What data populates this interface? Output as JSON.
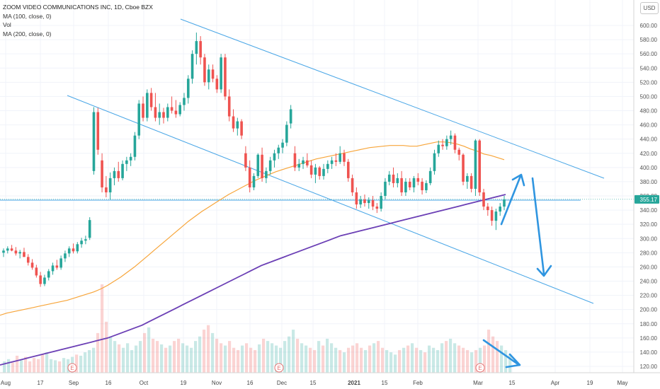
{
  "header": {
    "symbol_line": "ZOOM VIDEO COMMUNICATIONS INC, 1D, Cboe BZX",
    "indicators": [
      "MA (100, close, 0)",
      "Vol",
      "MA (200, close, 0)"
    ],
    "currency": "USD"
  },
  "colors": {
    "up": "#26a69a",
    "down": "#ef5350",
    "ma100": "#f7a53a",
    "ma200": "#6b3fb5",
    "trendline": "#49a6e6",
    "annotation_arrow": "#2f95e0",
    "price_label_bg": "#26a69a",
    "grid": "#f0f3fa"
  },
  "chart_data": {
    "type": "candlestick",
    "title": "ZOOM VIDEO COMMUNICATIONS INC, 1D, Cboe BZX",
    "y_axis": {
      "ticks": [
        "120.00",
        "140.00",
        "160.00",
        "180.00",
        "200.00",
        "220.00",
        "240.00",
        "260.00",
        "280.00",
        "300.00",
        "320.00",
        "340.00",
        "360.00",
        "380.00",
        "400.00",
        "420.00",
        "440.00",
        "460.00",
        "480.00",
        "500.00",
        "520.00",
        "540.00",
        "560.00",
        "580.00",
        "600.00"
      ],
      "range": [
        108,
        620
      ],
      "current_price_label": "355.17",
      "current_price": 355.17
    },
    "x_axis": {
      "ticks": [
        "Aug",
        "17",
        "Sep",
        "16",
        "Oct",
        "19",
        "Nov",
        "16",
        "Dec",
        "15",
        "2021",
        "15",
        "Feb",
        "Mar",
        "15",
        "Apr",
        "19",
        "May"
      ],
      "bold_ticks": [
        "2021"
      ]
    },
    "earnings_markers": [
      "E",
      "E",
      "E",
      "E"
    ],
    "grid": true,
    "candles": [
      {
        "o": 280,
        "h": 286,
        "l": 274,
        "c": 283
      },
      {
        "o": 283,
        "h": 289,
        "l": 279,
        "c": 286
      },
      {
        "o": 286,
        "h": 291,
        "l": 282,
        "c": 283
      },
      {
        "o": 283,
        "h": 288,
        "l": 276,
        "c": 279
      },
      {
        "o": 279,
        "h": 284,
        "l": 272,
        "c": 281
      },
      {
        "o": 281,
        "h": 287,
        "l": 276,
        "c": 274
      },
      {
        "o": 274,
        "h": 278,
        "l": 262,
        "c": 266
      },
      {
        "o": 266,
        "h": 271,
        "l": 256,
        "c": 259
      },
      {
        "o": 259,
        "h": 263,
        "l": 245,
        "c": 248
      },
      {
        "o": 248,
        "h": 253,
        "l": 232,
        "c": 236
      },
      {
        "o": 236,
        "h": 249,
        "l": 233,
        "c": 245
      },
      {
        "o": 245,
        "h": 257,
        "l": 241,
        "c": 254
      },
      {
        "o": 254,
        "h": 266,
        "l": 249,
        "c": 262
      },
      {
        "o": 262,
        "h": 270,
        "l": 256,
        "c": 259
      },
      {
        "o": 259,
        "h": 276,
        "l": 256,
        "c": 272
      },
      {
        "o": 272,
        "h": 283,
        "l": 267,
        "c": 279
      },
      {
        "o": 279,
        "h": 289,
        "l": 274,
        "c": 286
      },
      {
        "o": 286,
        "h": 293,
        "l": 279,
        "c": 282
      },
      {
        "o": 282,
        "h": 295,
        "l": 279,
        "c": 292
      },
      {
        "o": 292,
        "h": 301,
        "l": 287,
        "c": 297
      },
      {
        "o": 297,
        "h": 304,
        "l": 292,
        "c": 299
      },
      {
        "o": 301,
        "h": 330,
        "l": 298,
        "c": 326
      },
      {
        "o": 395,
        "h": 485,
        "l": 390,
        "c": 478
      },
      {
        "o": 478,
        "h": 484,
        "l": 418,
        "c": 425
      },
      {
        "o": 410,
        "h": 420,
        "l": 365,
        "c": 372
      },
      {
        "o": 372,
        "h": 388,
        "l": 358,
        "c": 365
      },
      {
        "o": 365,
        "h": 393,
        "l": 355,
        "c": 385
      },
      {
        "o": 385,
        "h": 400,
        "l": 375,
        "c": 395
      },
      {
        "o": 395,
        "h": 408,
        "l": 380,
        "c": 385
      },
      {
        "o": 385,
        "h": 410,
        "l": 382,
        "c": 405
      },
      {
        "o": 405,
        "h": 415,
        "l": 395,
        "c": 410
      },
      {
        "o": 410,
        "h": 420,
        "l": 402,
        "c": 415
      },
      {
        "o": 415,
        "h": 450,
        "l": 410,
        "c": 445
      },
      {
        "o": 445,
        "h": 495,
        "l": 440,
        "c": 490
      },
      {
        "o": 490,
        "h": 500,
        "l": 465,
        "c": 470
      },
      {
        "o": 470,
        "h": 510,
        "l": 465,
        "c": 505
      },
      {
        "o": 505,
        "h": 512,
        "l": 480,
        "c": 485
      },
      {
        "o": 485,
        "h": 505,
        "l": 465,
        "c": 470
      },
      {
        "o": 470,
        "h": 490,
        "l": 460,
        "c": 478
      },
      {
        "o": 478,
        "h": 484,
        "l": 462,
        "c": 470
      },
      {
        "o": 470,
        "h": 490,
        "l": 465,
        "c": 485
      },
      {
        "o": 485,
        "h": 500,
        "l": 476,
        "c": 480
      },
      {
        "o": 480,
        "h": 495,
        "l": 470,
        "c": 475
      },
      {
        "o": 475,
        "h": 492,
        "l": 472,
        "c": 488
      },
      {
        "o": 488,
        "h": 505,
        "l": 480,
        "c": 498
      },
      {
        "o": 498,
        "h": 530,
        "l": 490,
        "c": 525
      },
      {
        "o": 525,
        "h": 565,
        "l": 518,
        "c": 560
      },
      {
        "o": 560,
        "h": 590,
        "l": 545,
        "c": 578
      },
      {
        "o": 578,
        "h": 585,
        "l": 545,
        "c": 555
      },
      {
        "o": 555,
        "h": 560,
        "l": 515,
        "c": 520
      },
      {
        "o": 520,
        "h": 545,
        "l": 510,
        "c": 538
      },
      {
        "o": 538,
        "h": 545,
        "l": 520,
        "c": 525
      },
      {
        "o": 525,
        "h": 530,
        "l": 505,
        "c": 510
      },
      {
        "o": 510,
        "h": 560,
        "l": 505,
        "c": 555
      },
      {
        "o": 555,
        "h": 560,
        "l": 495,
        "c": 500
      },
      {
        "o": 500,
        "h": 510,
        "l": 465,
        "c": 472
      },
      {
        "o": 472,
        "h": 482,
        "l": 450,
        "c": 455
      },
      {
        "o": 455,
        "h": 470,
        "l": 445,
        "c": 465
      },
      {
        "o": 465,
        "h": 468,
        "l": 440,
        "c": 445
      },
      {
        "o": 420,
        "h": 430,
        "l": 395,
        "c": 400
      },
      {
        "o": 400,
        "h": 410,
        "l": 365,
        "c": 372
      },
      {
        "o": 372,
        "h": 392,
        "l": 368,
        "c": 388
      },
      {
        "o": 388,
        "h": 420,
        "l": 385,
        "c": 418
      },
      {
        "o": 418,
        "h": 428,
        "l": 380,
        "c": 385
      },
      {
        "o": 385,
        "h": 400,
        "l": 378,
        "c": 395
      },
      {
        "o": 395,
        "h": 415,
        "l": 390,
        "c": 410
      },
      {
        "o": 410,
        "h": 425,
        "l": 400,
        "c": 420
      },
      {
        "o": 420,
        "h": 432,
        "l": 412,
        "c": 428
      },
      {
        "o": 428,
        "h": 440,
        "l": 420,
        "c": 435
      },
      {
        "o": 435,
        "h": 465,
        "l": 430,
        "c": 460
      },
      {
        "o": 462,
        "h": 488,
        "l": 455,
        "c": 482
      },
      {
        "o": 420,
        "h": 430,
        "l": 395,
        "c": 400
      },
      {
        "o": 400,
        "h": 412,
        "l": 395,
        "c": 405
      },
      {
        "o": 405,
        "h": 415,
        "l": 398,
        "c": 410
      },
      {
        "o": 410,
        "h": 420,
        "l": 400,
        "c": 403
      },
      {
        "o": 403,
        "h": 410,
        "l": 385,
        "c": 390
      },
      {
        "o": 390,
        "h": 405,
        "l": 378,
        "c": 400
      },
      {
        "o": 400,
        "h": 402,
        "l": 383,
        "c": 388
      },
      {
        "o": 388,
        "h": 405,
        "l": 383,
        "c": 398
      },
      {
        "o": 398,
        "h": 410,
        "l": 392,
        "c": 405
      },
      {
        "o": 405,
        "h": 415,
        "l": 398,
        "c": 410
      },
      {
        "o": 410,
        "h": 420,
        "l": 402,
        "c": 408
      },
      {
        "o": 408,
        "h": 430,
        "l": 405,
        "c": 420
      },
      {
        "o": 420,
        "h": 425,
        "l": 402,
        "c": 408
      },
      {
        "o": 408,
        "h": 412,
        "l": 380,
        "c": 385
      },
      {
        "o": 385,
        "h": 390,
        "l": 360,
        "c": 365
      },
      {
        "o": 365,
        "h": 372,
        "l": 342,
        "c": 348
      },
      {
        "o": 348,
        "h": 360,
        "l": 343,
        "c": 355
      },
      {
        "o": 355,
        "h": 362,
        "l": 345,
        "c": 350
      },
      {
        "o": 350,
        "h": 358,
        "l": 342,
        "c": 354
      },
      {
        "o": 354,
        "h": 360,
        "l": 340,
        "c": 345
      },
      {
        "o": 345,
        "h": 350,
        "l": 336,
        "c": 342
      },
      {
        "o": 342,
        "h": 365,
        "l": 338,
        "c": 360
      },
      {
        "o": 360,
        "h": 385,
        "l": 355,
        "c": 380
      },
      {
        "o": 380,
        "h": 395,
        "l": 375,
        "c": 390
      },
      {
        "o": 390,
        "h": 400,
        "l": 372,
        "c": 378
      },
      {
        "o": 378,
        "h": 392,
        "l": 372,
        "c": 385
      },
      {
        "o": 385,
        "h": 395,
        "l": 360,
        "c": 365
      },
      {
        "o": 365,
        "h": 385,
        "l": 360,
        "c": 380
      },
      {
        "o": 380,
        "h": 385,
        "l": 368,
        "c": 372
      },
      {
        "o": 372,
        "h": 388,
        "l": 365,
        "c": 385
      },
      {
        "o": 385,
        "h": 392,
        "l": 375,
        "c": 380
      },
      {
        "o": 380,
        "h": 385,
        "l": 362,
        "c": 368
      },
      {
        "o": 368,
        "h": 382,
        "l": 364,
        "c": 378
      },
      {
        "o": 378,
        "h": 400,
        "l": 375,
        "c": 395
      },
      {
        "o": 395,
        "h": 425,
        "l": 390,
        "c": 420
      },
      {
        "o": 420,
        "h": 438,
        "l": 415,
        "c": 432
      },
      {
        "o": 432,
        "h": 440,
        "l": 425,
        "c": 430
      },
      {
        "o": 430,
        "h": 445,
        "l": 425,
        "c": 440
      },
      {
        "o": 440,
        "h": 452,
        "l": 432,
        "c": 445
      },
      {
        "o": 445,
        "h": 448,
        "l": 420,
        "c": 425
      },
      {
        "o": 425,
        "h": 428,
        "l": 410,
        "c": 418
      },
      {
        "o": 418,
        "h": 420,
        "l": 375,
        "c": 380
      },
      {
        "o": 380,
        "h": 392,
        "l": 370,
        "c": 388
      },
      {
        "o": 388,
        "h": 392,
        "l": 365,
        "c": 370
      },
      {
        "o": 370,
        "h": 440,
        "l": 360,
        "c": 438
      },
      {
        "o": 438,
        "h": 440,
        "l": 360,
        "c": 365
      },
      {
        "o": 365,
        "h": 370,
        "l": 340,
        "c": 345
      },
      {
        "o": 345,
        "h": 350,
        "l": 332,
        "c": 340
      },
      {
        "o": 340,
        "h": 345,
        "l": 318,
        "c": 325
      },
      {
        "o": 325,
        "h": 342,
        "l": 312,
        "c": 338
      },
      {
        "o": 338,
        "h": 350,
        "l": 332,
        "c": 345
      },
      {
        "o": 345,
        "h": 360,
        "l": 340,
        "c": 355
      }
    ],
    "series": [
      {
        "name": "MA (100, close, 0)",
        "values": [
          192,
          195,
          197,
          199,
          201,
          203,
          205,
          207,
          209,
          211,
          213,
          216,
          219,
          222,
          225,
          229,
          234,
          240,
          246,
          253,
          260,
          268,
          276,
          284,
          292,
          300,
          308,
          316,
          324,
          331,
          338,
          344,
          350,
          356,
          362,
          367,
          372,
          377,
          382,
          386,
          390,
          394,
          397,
          400,
          403,
          406,
          409,
          412,
          414,
          416,
          418,
          420,
          422,
          424,
          426,
          428,
          429,
          430,
          431,
          431,
          431,
          430,
          430,
          432,
          434,
          436,
          436,
          435,
          433,
          430,
          426,
          423,
          419,
          417,
          414,
          411
        ]
      },
      {
        "name": "MA (200, close, 0)",
        "values": [
          122,
          124,
          126,
          128,
          130,
          132,
          134,
          136,
          138,
          140,
          142,
          144,
          146,
          148,
          150,
          152,
          154,
          156,
          158,
          160,
          163,
          166,
          169,
          172,
          175,
          178,
          182,
          186,
          190,
          194,
          198,
          202,
          206,
          210,
          214,
          218,
          222,
          226,
          230,
          234,
          238,
          242,
          246,
          250,
          254,
          258,
          262,
          265,
          268,
          271,
          274,
          277,
          280,
          283,
          286,
          289,
          292,
          295,
          298,
          301,
          304,
          306,
          308,
          310,
          312,
          314,
          316,
          318,
          320,
          322,
          324,
          326,
          328,
          330,
          332,
          334,
          336,
          338,
          340,
          342,
          344,
          346,
          348,
          350,
          352,
          354,
          356,
          358,
          360,
          362
        ]
      }
    ],
    "volume": [
      10,
      12,
      9,
      15,
      11,
      14,
      10,
      13,
      12,
      16,
      18,
      12,
      11,
      10,
      13,
      12,
      14,
      16,
      15,
      18,
      20,
      22,
      35,
      78,
      45,
      32,
      28,
      25,
      22,
      26,
      20,
      24,
      28,
      35,
      40,
      30,
      28,
      25,
      22,
      24,
      28,
      30,
      26,
      24,
      22,
      28,
      32,
      38,
      42,
      35,
      30,
      26,
      24,
      28,
      22,
      20,
      24,
      26,
      22,
      20,
      25,
      30,
      28,
      26,
      24,
      22,
      28,
      32,
      38,
      30,
      26,
      24,
      22,
      20,
      28,
      24,
      30,
      26,
      22,
      20,
      18,
      22,
      24,
      26,
      22,
      20,
      24,
      26,
      28,
      22,
      20,
      18,
      16,
      20,
      22,
      24,
      26,
      22,
      20,
      18,
      24,
      22,
      20,
      26,
      28,
      30,
      26,
      24,
      22,
      20,
      18,
      20,
      22,
      24,
      38,
      32,
      28,
      24,
      20,
      16
    ]
  }
}
